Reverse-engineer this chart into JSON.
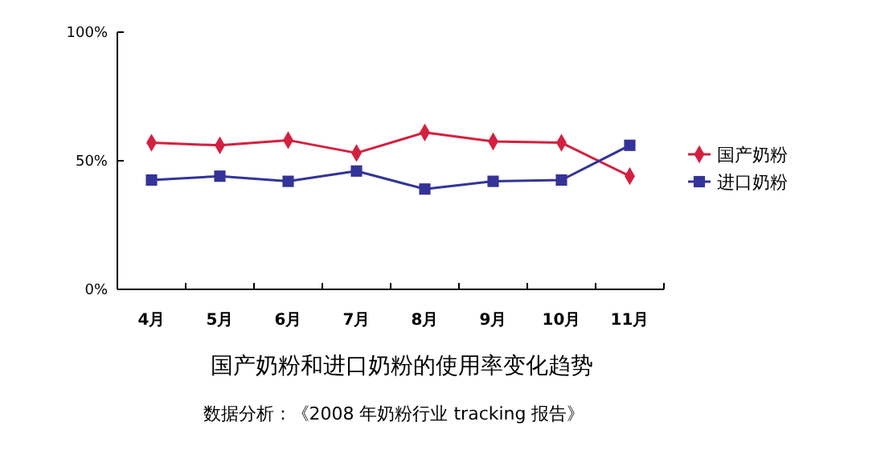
{
  "chart_data": {
    "type": "line",
    "title": "国产奶粉和进口奶粉的使用率变化趋势",
    "annotations": [
      "数据分析：《2008 年奶粉行业 tracking 报告》"
    ],
    "categories": [
      "4月",
      "5月",
      "6月",
      "7月",
      "8月",
      "9月",
      "10月",
      "11月"
    ],
    "series": [
      {
        "name": "国产奶粉",
        "color": "#d42040",
        "marker": "diamond",
        "values": [
          57,
          56,
          58,
          53,
          61,
          57.5,
          57,
          44
        ]
      },
      {
        "name": "进口奶粉",
        "color": "#333399",
        "marker": "square",
        "values": [
          42.5,
          44,
          42,
          46,
          39,
          42,
          42.5,
          56
        ]
      }
    ],
    "ylim": [
      0,
      100
    ],
    "yticks": [
      {
        "value": 0,
        "label": "0%"
      },
      {
        "value": 50,
        "label": "50%"
      },
      {
        "value": 100,
        "label": "100%"
      }
    ],
    "grid": false,
    "legend": "right"
  }
}
